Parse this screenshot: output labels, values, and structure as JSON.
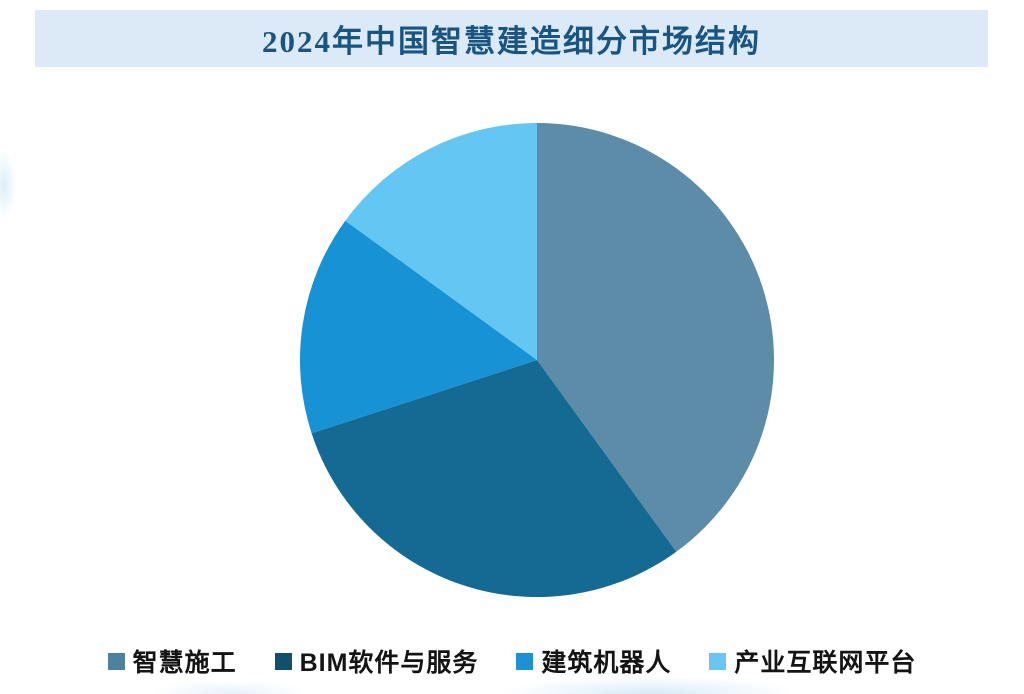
{
  "header": {
    "bg_color": "#dceaf7",
    "text_color": "#1a5480"
  },
  "chart_data": {
    "type": "pie",
    "title": "2024年中国智慧建造细分市场结构",
    "unit": "%",
    "categories": [
      "智慧施工",
      "BIM软件与服务",
      "建筑机器人",
      "产业互联网平台"
    ],
    "values": [
      40,
      30,
      15,
      15
    ],
    "colors": [
      "#5D8CA8",
      "#146A92",
      "#1793D5",
      "#64C6F2"
    ],
    "legend_swatch_colors": [
      "#4E80A0",
      "#124F6D",
      "#1F90D1",
      "#69C6F0"
    ],
    "legend_position": "bottom",
    "start_angle_deg": 0,
    "direction": "clockwise",
    "data_labels": false,
    "donut": false
  }
}
